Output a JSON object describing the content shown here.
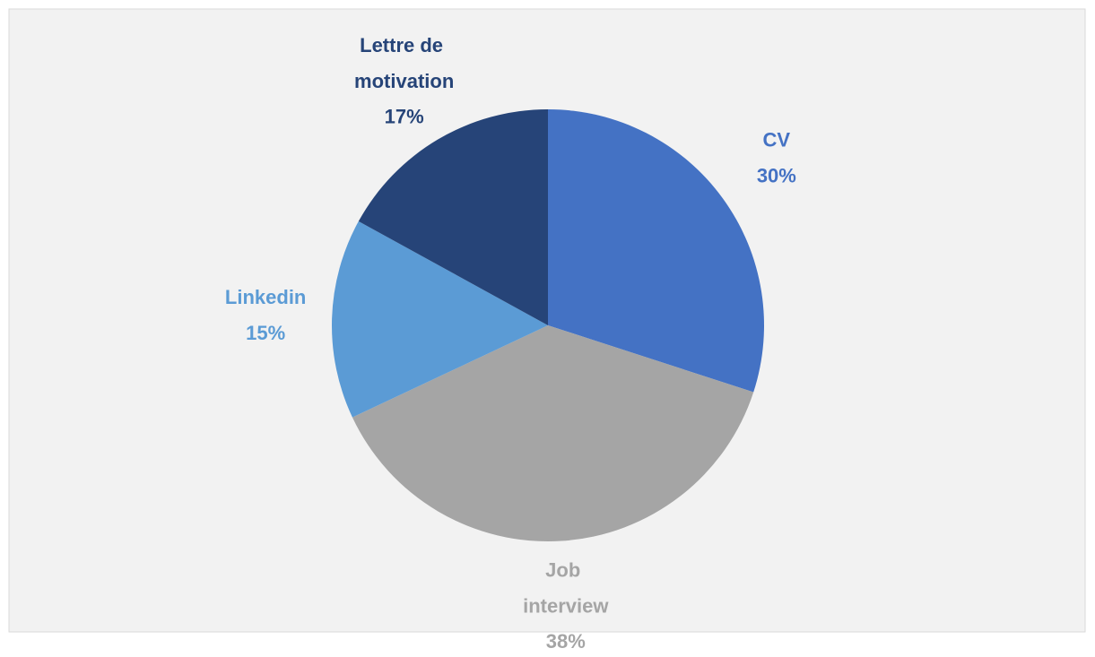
{
  "chart_data": {
    "type": "pie",
    "categories": [
      "CV",
      "Job interview",
      "Linkedin",
      "Lettre de motivation"
    ],
    "values": [
      30,
      38,
      15,
      17
    ],
    "value_labels": [
      "30%",
      "38%",
      "15%",
      "17%"
    ],
    "colors": [
      "#4472c4",
      "#a5a5a5",
      "#5b9bd5",
      "#264478"
    ]
  }
}
